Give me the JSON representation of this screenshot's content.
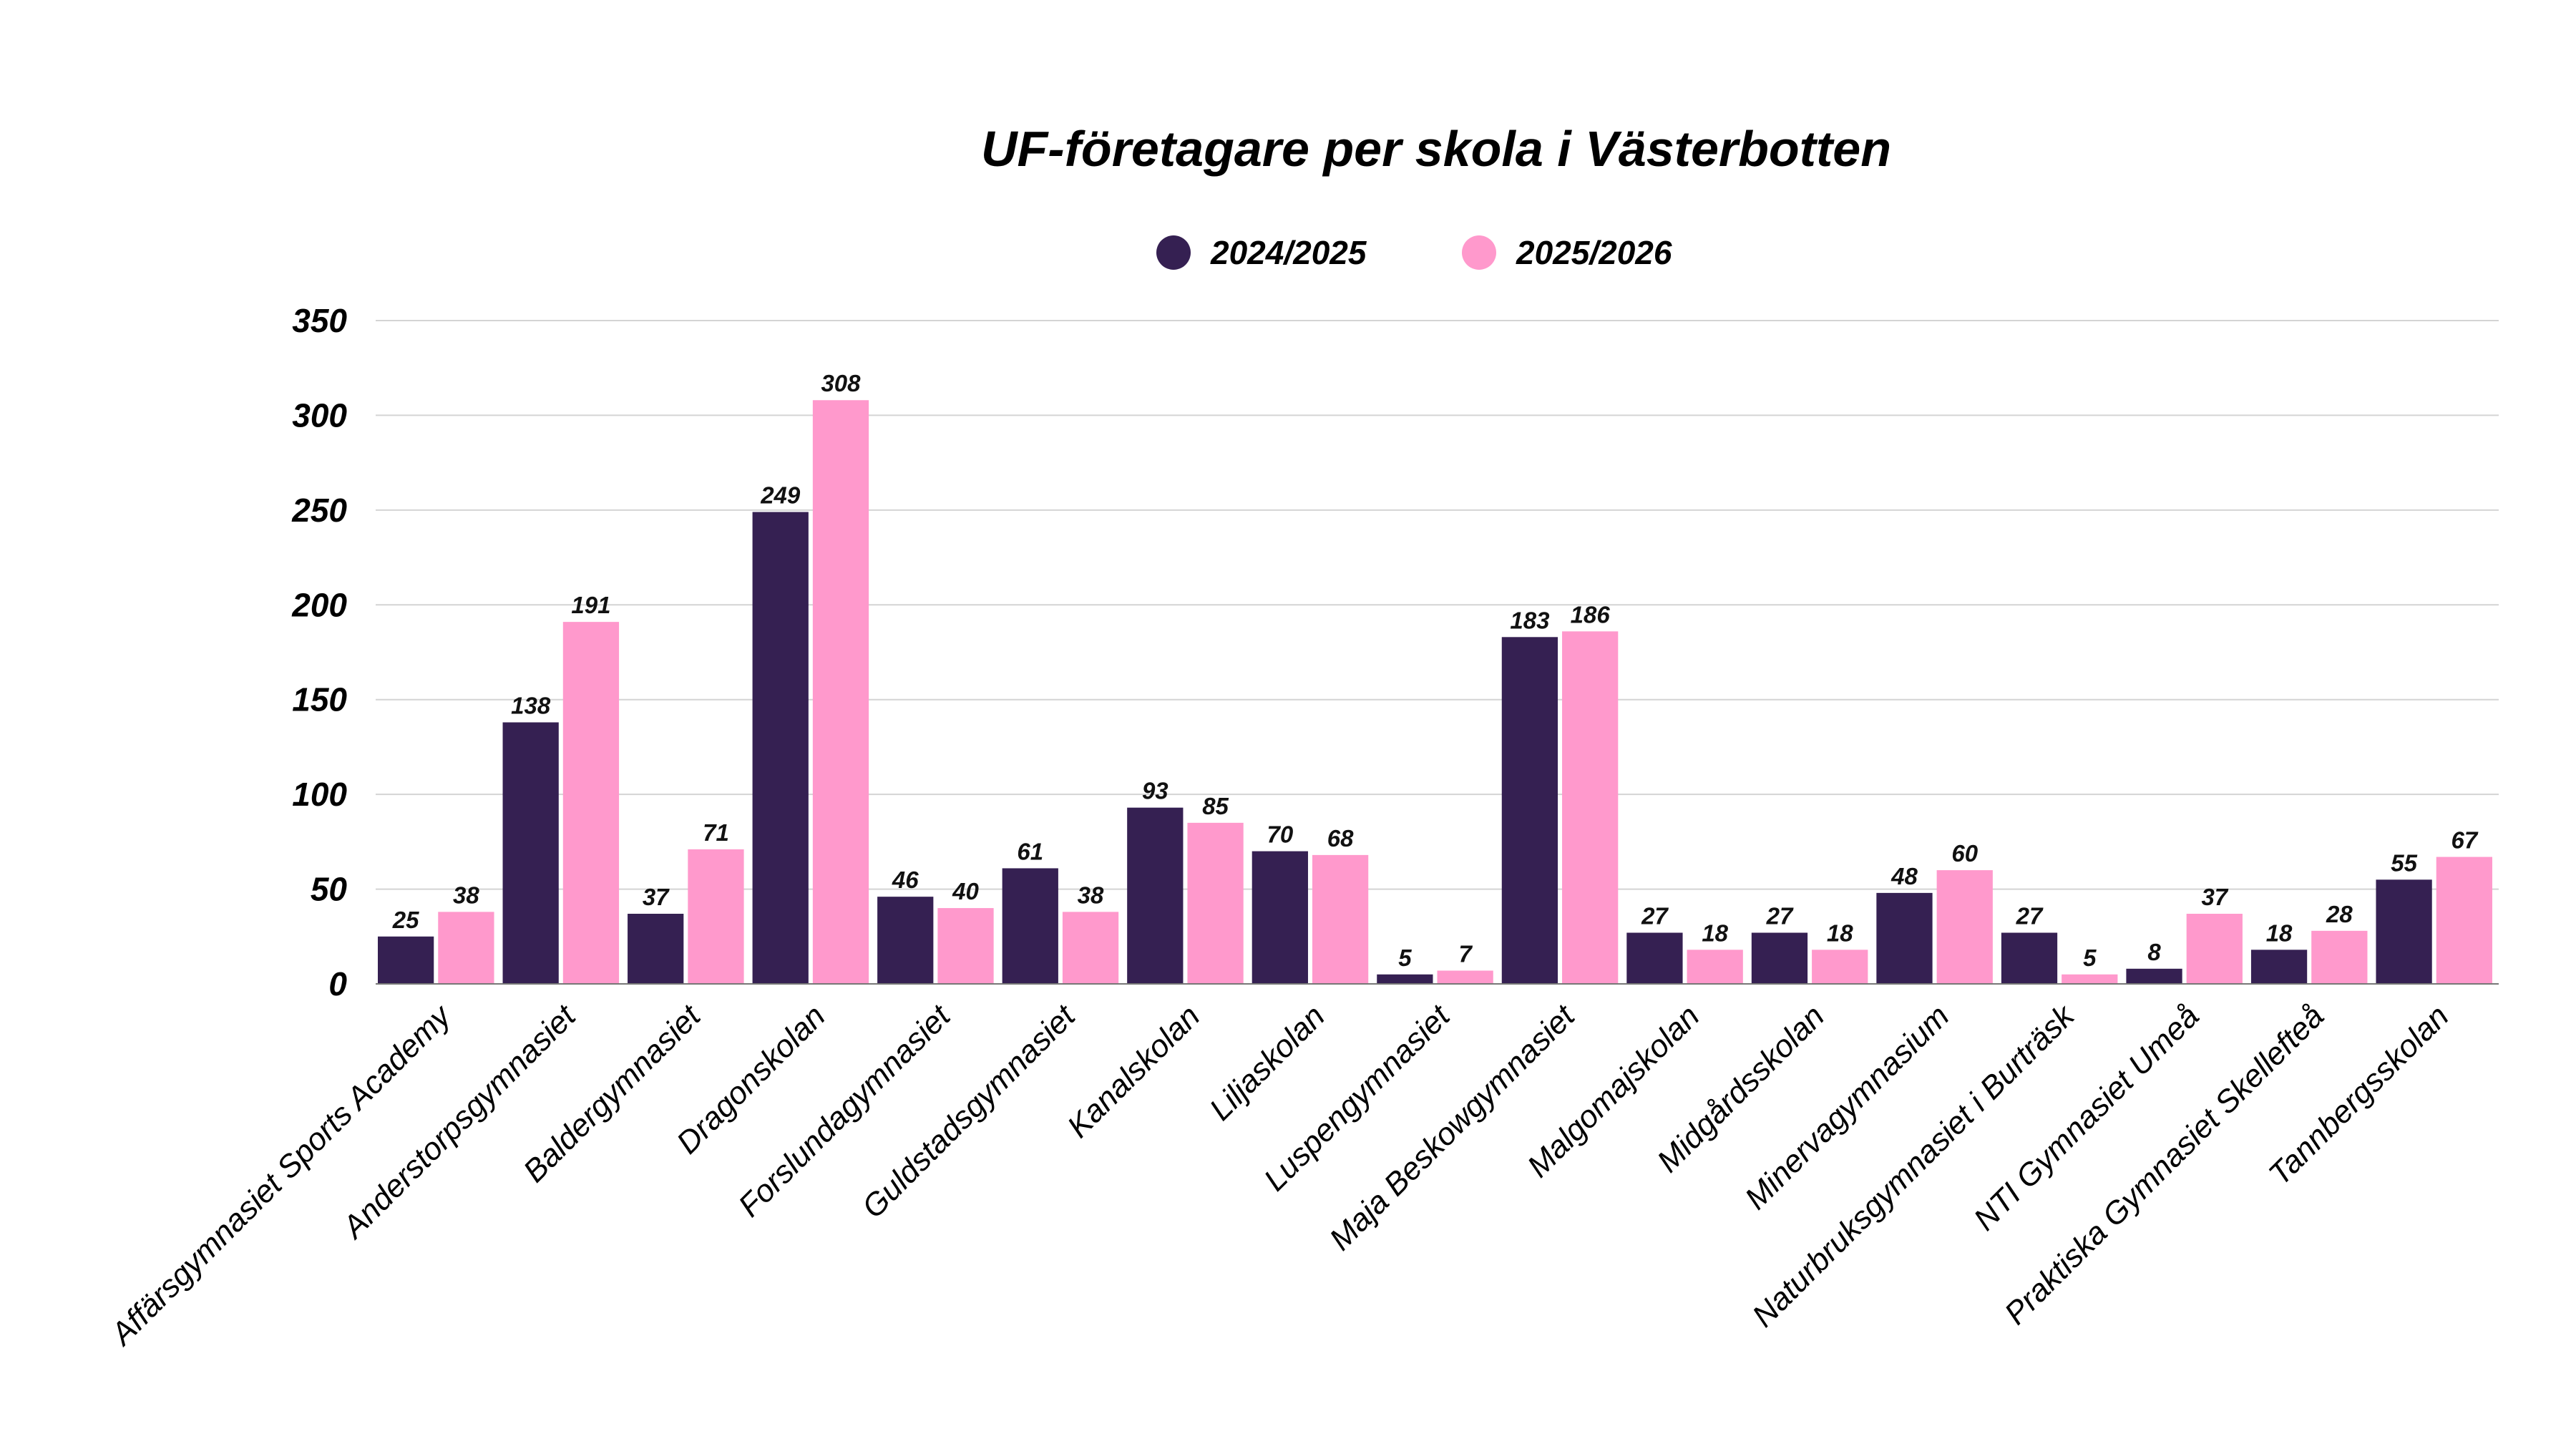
{
  "chart_data": {
    "type": "bar",
    "title": "UF-företagare per skola i Västerbotten",
    "xlabel": "",
    "ylabel": "",
    "ylim": [
      0,
      350
    ],
    "yticks": [
      0,
      50,
      100,
      150,
      200,
      250,
      300,
      350
    ],
    "grid": true,
    "legend_position": "top-center",
    "categories": [
      "Affärsgymnasiet Sports Academy",
      "Anderstorpsgymnasiet",
      "Baldergymnasiet",
      "Dragonskolan",
      "Forslundagymnasiet",
      "Guldstadsgymnasiet",
      "Kanalskolan",
      "Liljaskolan",
      "Luspengymnasiet",
      "Maja Beskowgymnasiet",
      "Malgomajskolan",
      "Midgårdsskolan",
      "Minervagymnasium",
      "Naturbruksgymnasiet i Burträsk",
      "NTI Gymnasiet Umeå",
      "Praktiska Gymnasiet Skellefteå",
      "Tannbergsskolan"
    ],
    "series": [
      {
        "name": "2024/2025",
        "color": "#352052",
        "values": [
          25,
          138,
          37,
          249,
          46,
          61,
          93,
          70,
          5,
          183,
          27,
          27,
          48,
          27,
          8,
          18,
          55
        ]
      },
      {
        "name": "2025/2026",
        "color": "#ff99cc",
        "values": [
          38,
          191,
          71,
          308,
          40,
          38,
          85,
          68,
          7,
          186,
          18,
          18,
          60,
          5,
          37,
          28,
          67
        ]
      }
    ]
  }
}
